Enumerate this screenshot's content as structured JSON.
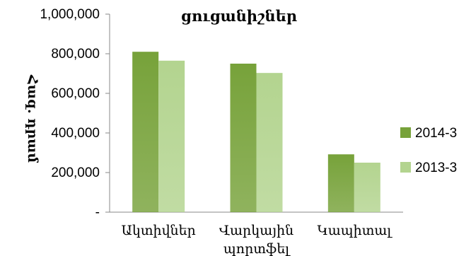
{
  "chart_data": {
    "type": "bar",
    "title": "ցուցանիշներ",
    "ylabel": "Հազ. դրամ",
    "xlabel": "",
    "categories": [
      "Ակտիվներ",
      "Վարկային պորտֆել",
      "Կապիտալ"
    ],
    "category_lines": [
      [
        "Ակտիվներ"
      ],
      [
        "Վարկային",
        "պորտֆել"
      ],
      [
        "Կապիտալ"
      ]
    ],
    "series": [
      {
        "name": "2014-3",
        "values": [
          810000,
          750000,
          292000
        ],
        "color": "#77a23a"
      },
      {
        "name": "2013-3",
        "values": [
          765000,
          703000,
          250000
        ],
        "color": "#b3d48f"
      }
    ],
    "ylim": [
      0,
      1000000
    ],
    "yticks": [
      0,
      200000,
      400000,
      600000,
      800000,
      1000000
    ],
    "ytick_labels": [
      "-",
      "200,000",
      "400,000",
      "600,000",
      "800,000",
      "1,000,000"
    ],
    "grid": false,
    "legend_position": "right"
  }
}
